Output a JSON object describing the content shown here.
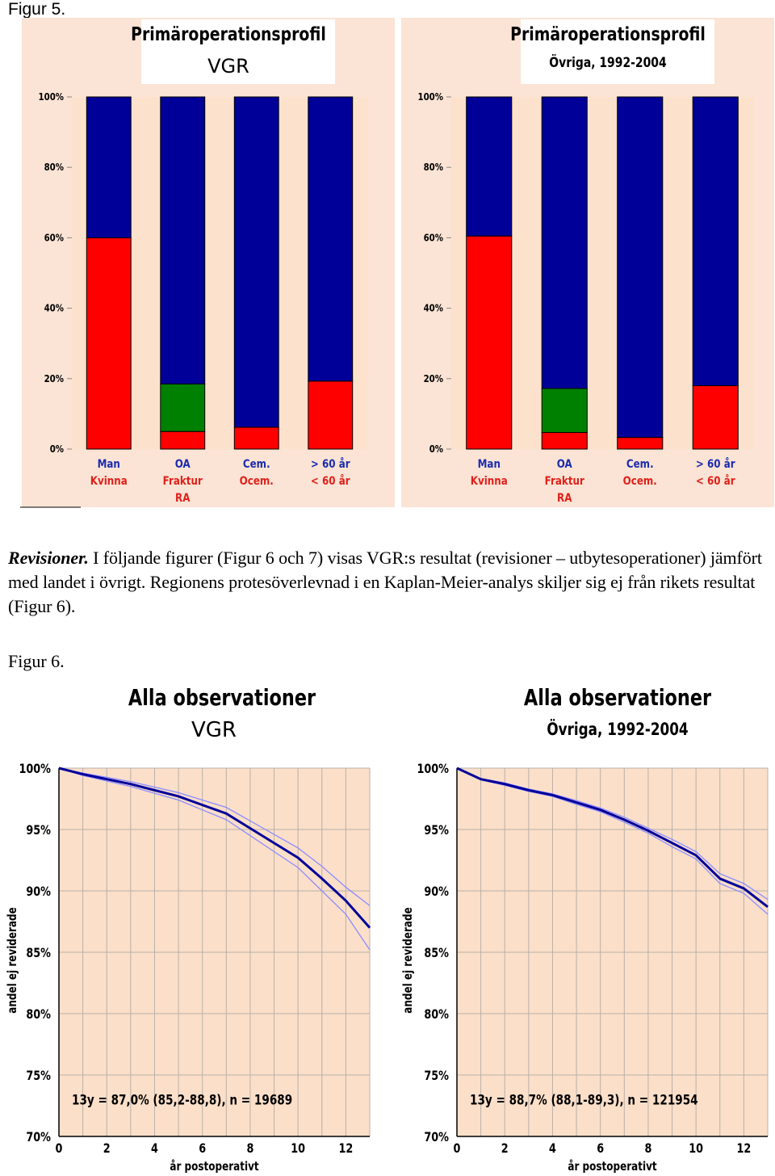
{
  "figure5": {
    "label": "Figur 5.",
    "charts": [
      {
        "title": "Primäroperationsprofil",
        "subtitle": "VGR",
        "y_ticks": [
          "100%",
          "80%",
          "60%",
          "40%",
          "20%",
          "0%"
        ],
        "x_labels": [
          {
            "line1": "Man",
            "line2": "Kvinna",
            "line3": ""
          },
          {
            "line1": "OA",
            "line2": "Fraktur",
            "line3": "RA"
          },
          {
            "line1": "Cem.",
            "line2": "Ocem.",
            "line3": ""
          },
          {
            "line1": "> 60 år",
            "line2": "< 60 år",
            "line3": ""
          }
        ]
      },
      {
        "title": "Primäroperationsprofil",
        "subtitle": "Övriga, 1992-2004",
        "y_ticks": [
          "100%",
          "80%",
          "60%",
          "40%",
          "20%",
          "0%"
        ],
        "x_labels": [
          {
            "line1": "Man",
            "line2": "Kvinna",
            "line3": ""
          },
          {
            "line1": "OA",
            "line2": "Fraktur",
            "line3": "RA"
          },
          {
            "line1": "Cem.",
            "line2": "Ocem.",
            "line3": ""
          },
          {
            "line1": "> 60 år",
            "line2": "< 60 år",
            "line3": ""
          }
        ]
      }
    ]
  },
  "paragraph": {
    "heading": "Revisioner.",
    "text": " I följande figurer (Figur 6 och 7) visas VGR:s resultat (revisioner – utbytesoperationer) jämfört med landet i övrigt. Regionens protesöverlevnad i en Kaplan-Meier-analys skiljer sig ej från rikets resultat (Figur 6)."
  },
  "figure6": {
    "label": "Figur 6.",
    "charts": [
      {
        "title": "Alla observationer",
        "subtitle": "VGR",
        "ylabel": "andel ej reviderade",
        "xlabel": "år postoperativt",
        "y_ticks": [
          "100%",
          "95%",
          "90%",
          "85%",
          "80%",
          "75%",
          "70%"
        ],
        "x_ticks": [
          "0",
          "2",
          "4",
          "6",
          "8",
          "10",
          "12"
        ],
        "annotation": "13y = 87,0% (85,2-88,8), n = 19689"
      },
      {
        "title": "Alla observationer",
        "subtitle": "Övriga, 1992-2004",
        "ylabel": "andel ej reviderade",
        "xlabel": "år postoperativt",
        "y_ticks": [
          "100%",
          "95%",
          "90%",
          "85%",
          "80%",
          "75%",
          "70%"
        ],
        "x_ticks": [
          "0",
          "2",
          "4",
          "6",
          "8",
          "10",
          "12"
        ],
        "annotation": "13y = 88,7% (88,1-89,3), n = 121954"
      }
    ]
  },
  "chart_data": [
    {
      "type": "bar",
      "stacked": true,
      "title": "Primäroperationsprofil",
      "subtitle": "VGR",
      "categories": [
        "Man/Kvinna",
        "OA/Fraktur/RA",
        "Cem./Ocem.",
        "> 60 år/< 60 år"
      ],
      "ylim": [
        0,
        100
      ],
      "y_unit": "%",
      "segments": [
        [
          {
            "from": 0,
            "to": 60,
            "color": "#ff0000"
          },
          {
            "from": 60,
            "to": 100,
            "color": "#000099"
          }
        ],
        [
          {
            "from": 0,
            "to": 5,
            "color": "#ff0000"
          },
          {
            "from": 5,
            "to": 18.5,
            "color": "#008000"
          },
          {
            "from": 18.5,
            "to": 100,
            "color": "#000099"
          }
        ],
        [
          {
            "from": 0,
            "to": 6.2,
            "color": "#ff0000"
          },
          {
            "from": 6.2,
            "to": 100,
            "color": "#000099"
          }
        ],
        [
          {
            "from": 0,
            "to": 19.3,
            "color": "#ff0000"
          },
          {
            "from": 19.3,
            "to": 100,
            "color": "#000099"
          }
        ]
      ]
    },
    {
      "type": "bar",
      "stacked": true,
      "title": "Primäroperationsprofil",
      "subtitle": "Övriga, 1992-2004",
      "categories": [
        "Man/Kvinna",
        "OA/Fraktur/RA",
        "Cem./Ocem.",
        "> 60 år/< 60 år"
      ],
      "ylim": [
        0,
        100
      ],
      "y_unit": "%",
      "segments": [
        [
          {
            "from": 0,
            "to": 60.5,
            "color": "#ff0000"
          },
          {
            "from": 60.5,
            "to": 100,
            "color": "#000099"
          }
        ],
        [
          {
            "from": 0,
            "to": 4.7,
            "color": "#ff0000"
          },
          {
            "from": 4.7,
            "to": 17.2,
            "color": "#008000"
          },
          {
            "from": 17.2,
            "to": 100,
            "color": "#000099"
          }
        ],
        [
          {
            "from": 0,
            "to": 3.3,
            "color": "#ff0000"
          },
          {
            "from": 3.3,
            "to": 100,
            "color": "#000099"
          }
        ],
        [
          {
            "from": 0,
            "to": 18,
            "color": "#ff0000"
          },
          {
            "from": 18,
            "to": 100,
            "color": "#000099"
          }
        ]
      ]
    },
    {
      "type": "line",
      "title": "Alla observationer",
      "subtitle": "VGR",
      "xlabel": "år postoperativt",
      "ylabel": "andel ej reviderade",
      "xlim": [
        0,
        13
      ],
      "ylim": [
        70,
        100
      ],
      "x": [
        0,
        1,
        2,
        3,
        4,
        5,
        6,
        7,
        8,
        9,
        10,
        11,
        12,
        13
      ],
      "series": [
        {
          "role": "estimate",
          "color": "#000099",
          "values": [
            100,
            99.5,
            99.1,
            98.7,
            98.2,
            97.7,
            97.0,
            96.3,
            95.1,
            93.9,
            92.7,
            91.0,
            89.2,
            87.0
          ]
        },
        {
          "role": "upper",
          "color": "#8c8cff",
          "values": [
            100,
            99.6,
            99.25,
            98.9,
            98.45,
            98.0,
            97.4,
            96.8,
            95.7,
            94.6,
            93.5,
            92.0,
            90.3,
            88.8
          ]
        },
        {
          "role": "lower",
          "color": "#8c8cff",
          "values": [
            100,
            99.4,
            98.95,
            98.5,
            97.95,
            97.4,
            96.6,
            95.8,
            94.5,
            93.2,
            91.9,
            90.0,
            88.1,
            85.2
          ]
        }
      ]
    },
    {
      "type": "line",
      "title": "Alla observationer",
      "subtitle": "Övriga, 1992-2004",
      "xlabel": "år postoperativt",
      "ylabel": "andel ej reviderade",
      "xlim": [
        0,
        13
      ],
      "ylim": [
        70,
        100
      ],
      "x": [
        0,
        1,
        2,
        3,
        4,
        5,
        6,
        7,
        8,
        9,
        10,
        11,
        12,
        13
      ],
      "series": [
        {
          "role": "estimate",
          "color": "#000099",
          "values": [
            100,
            99.1,
            98.7,
            98.2,
            97.8,
            97.2,
            96.6,
            95.8,
            94.9,
            93.9,
            92.9,
            91.0,
            90.2,
            88.7
          ]
        },
        {
          "role": "upper",
          "color": "#8c8cff",
          "values": [
            100,
            99.15,
            98.8,
            98.3,
            97.9,
            97.35,
            96.75,
            96.0,
            95.1,
            94.2,
            93.2,
            91.4,
            90.6,
            89.3
          ]
        },
        {
          "role": "lower",
          "color": "#8c8cff",
          "values": [
            100,
            99.05,
            98.6,
            98.1,
            97.7,
            97.05,
            96.45,
            95.6,
            94.7,
            93.6,
            92.6,
            90.6,
            89.8,
            88.1
          ]
        }
      ]
    }
  ]
}
